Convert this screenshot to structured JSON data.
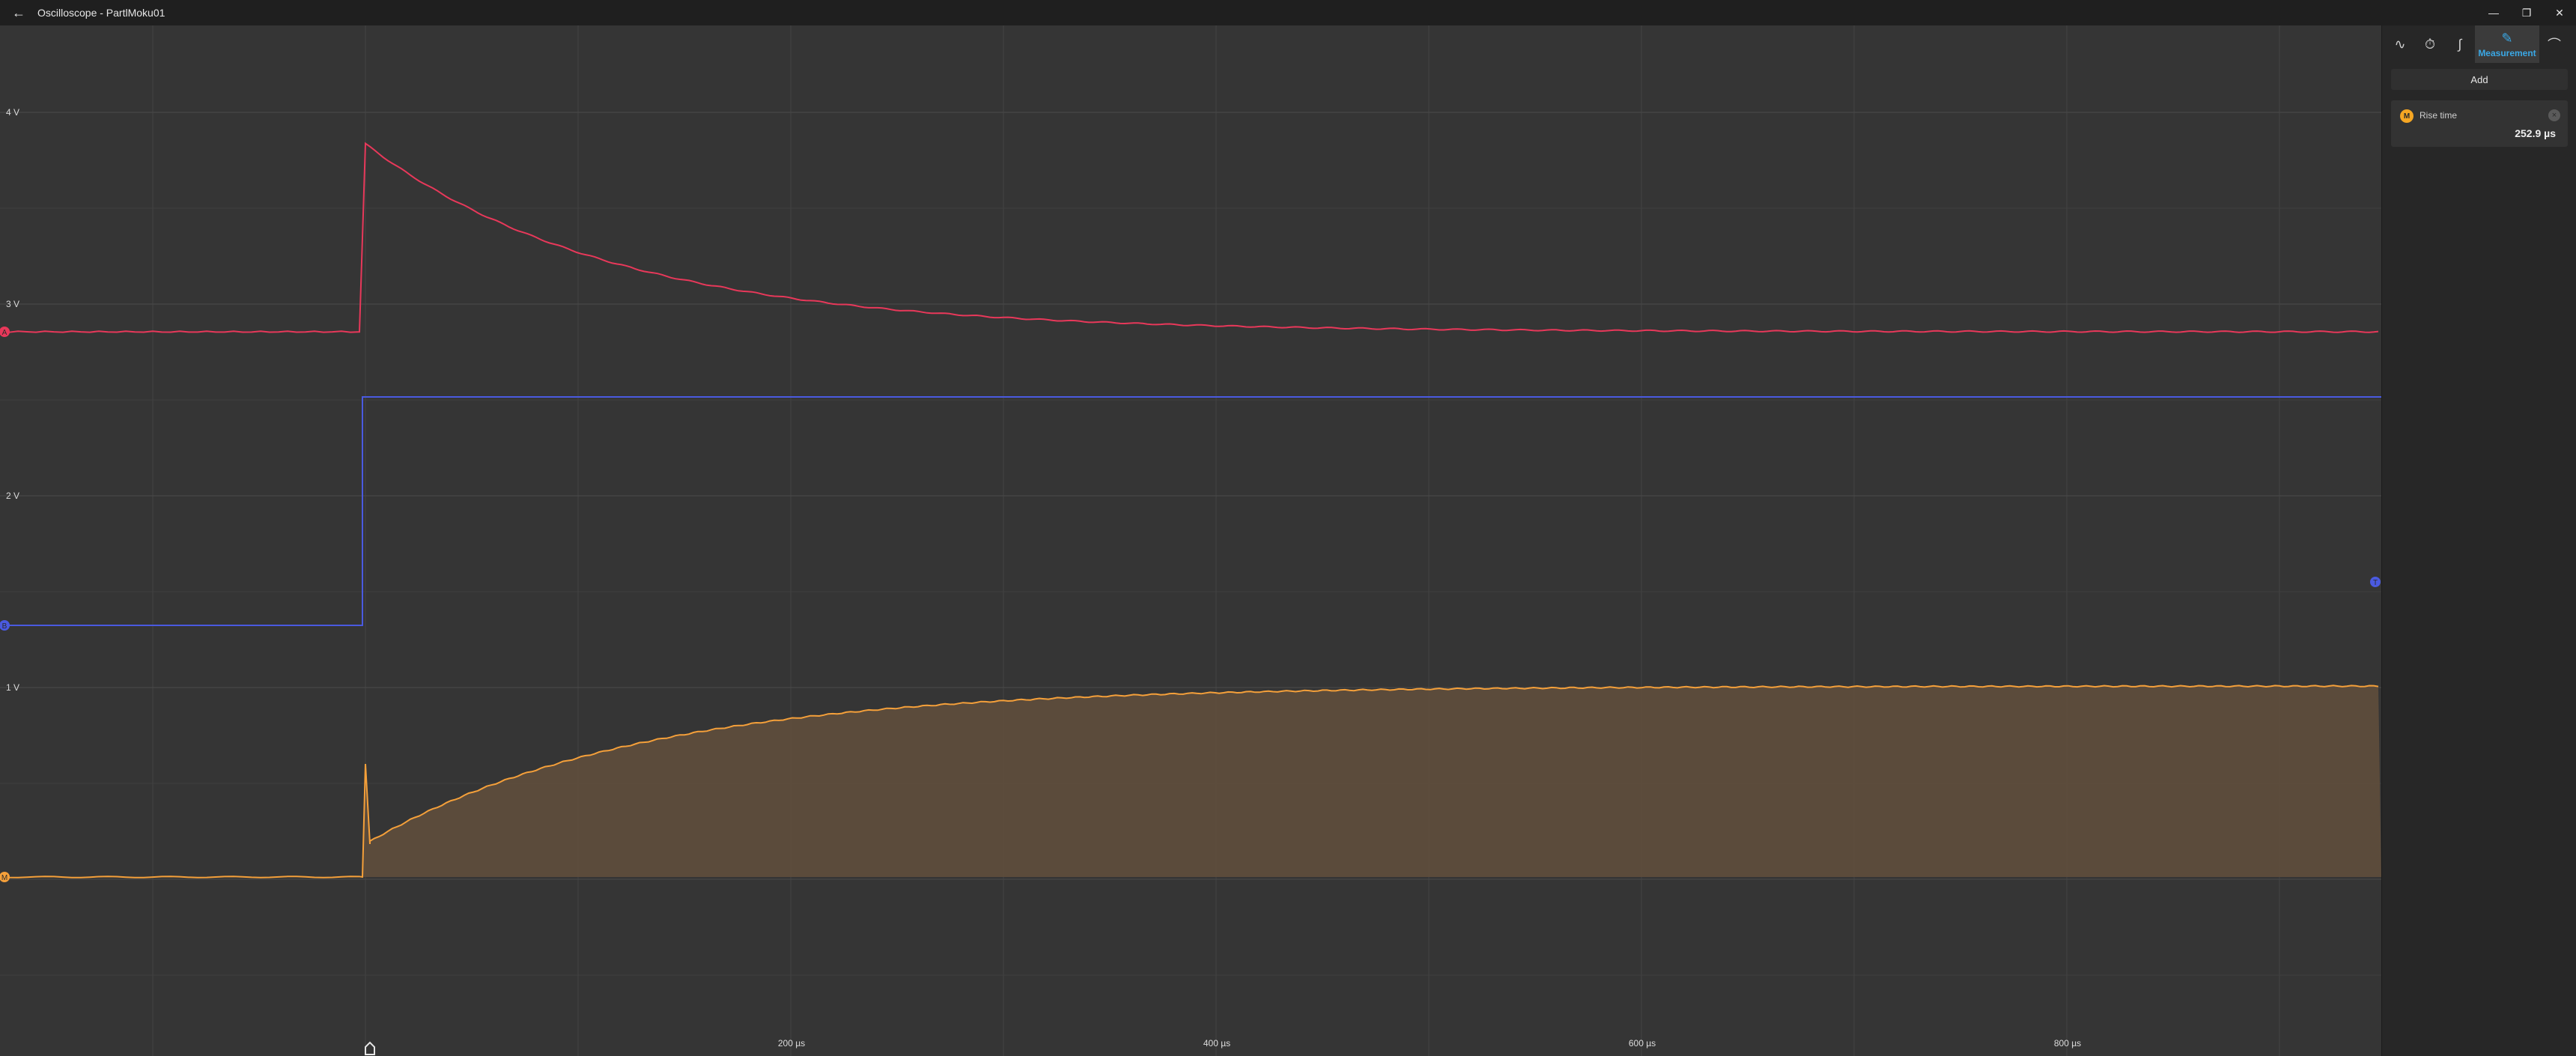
{
  "window": {
    "title": "Oscilloscope - PartlMoku01",
    "back_icon": "arrow-left-icon",
    "minimize": "—",
    "maximize": "❐",
    "close": "✕"
  },
  "plot": {
    "y_labels": [
      "4 V",
      "3 V",
      "2 V",
      "1 V"
    ],
    "x_labels": [
      "200 µs",
      "400 µs",
      "600 µs",
      "800 µs"
    ],
    "trigger_marker": "T",
    "channel_markers": [
      "A",
      "B",
      "M"
    ],
    "colors": {
      "channel_a": "#e8385a",
      "channel_b": "#4a5ae0",
      "math": "#f5a03a",
      "fill": "#5e4d3c"
    }
  },
  "panel": {
    "tabs": [
      {
        "icon": "sine-wave-icon"
      },
      {
        "icon": "timer-icon"
      },
      {
        "icon": "trigger-edge-icon"
      },
      {
        "icon": "measurement-ruler-icon",
        "label": "Measurement"
      },
      {
        "icon": "gauge-icon"
      }
    ],
    "add_label": "Add",
    "measurement": {
      "badge": "M",
      "name": "Rise time",
      "value": "252.9 µs"
    }
  }
}
